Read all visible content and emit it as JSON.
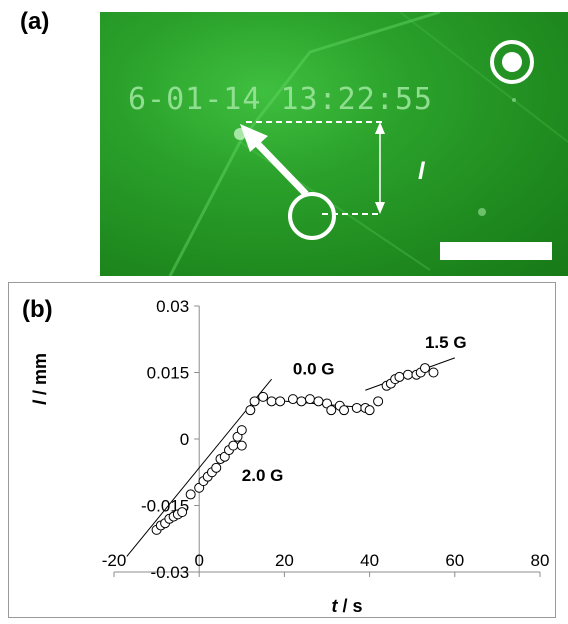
{
  "panel_a": {
    "label": "(a)",
    "timestamp": "6-01-14 13:22:55",
    "length_symbol": "l"
  },
  "panel_b": {
    "label": "(b)"
  },
  "chart_data": {
    "type": "scatter",
    "xlabel_symbol": "t",
    "xlabel_unit": " / s",
    "ylabel_symbol": "l",
    "ylabel_unit": " / mm",
    "xlim": [
      -20,
      80
    ],
    "ylim": [
      -0.03,
      0.03
    ],
    "x_ticks": [
      -20,
      0,
      20,
      40,
      60,
      80
    ],
    "y_ticks": [
      0.03,
      0.015,
      0,
      -0.015,
      -0.03
    ],
    "x_tick_labels": [
      "-20",
      "0",
      "20",
      "40",
      "60",
      "80"
    ],
    "y_tick_labels": [
      "0.03",
      "0.015",
      "0",
      "-0.015",
      "-0.03"
    ],
    "grid": false,
    "points": [
      {
        "x": -10,
        "y": -0.0205
      },
      {
        "x": -9,
        "y": -0.0195
      },
      {
        "x": -8,
        "y": -0.019
      },
      {
        "x": -7,
        "y": -0.018
      },
      {
        "x": -6,
        "y": -0.0175
      },
      {
        "x": -5,
        "y": -0.017
      },
      {
        "x": -4,
        "y": -0.0165
      },
      {
        "x": -2,
        "y": -0.0125
      },
      {
        "x": 0,
        "y": -0.011
      },
      {
        "x": 1,
        "y": -0.0095
      },
      {
        "x": 2,
        "y": -0.0085
      },
      {
        "x": 3,
        "y": -0.0075
      },
      {
        "x": 4,
        "y": -0.0065
      },
      {
        "x": 5,
        "y": -0.0045
      },
      {
        "x": 6,
        "y": -0.004
      },
      {
        "x": 7,
        "y": -0.0025
      },
      {
        "x": 8,
        "y": -0.0015
      },
      {
        "x": 9,
        "y": 0.0005
      },
      {
        "x": 10,
        "y": 0.002
      },
      {
        "x": 10,
        "y": -0.0015
      },
      {
        "x": 12,
        "y": 0.0065
      },
      {
        "x": 13,
        "y": 0.0085
      },
      {
        "x": 15,
        "y": 0.0095
      },
      {
        "x": 17,
        "y": 0.0085
      },
      {
        "x": 19,
        "y": 0.0085
      },
      {
        "x": 22,
        "y": 0.009
      },
      {
        "x": 24,
        "y": 0.0085
      },
      {
        "x": 26,
        "y": 0.009
      },
      {
        "x": 28,
        "y": 0.0085
      },
      {
        "x": 30,
        "y": 0.008
      },
      {
        "x": 31,
        "y": 0.0065
      },
      {
        "x": 33,
        "y": 0.0075
      },
      {
        "x": 34,
        "y": 0.0065
      },
      {
        "x": 37,
        "y": 0.007
      },
      {
        "x": 39,
        "y": 0.007
      },
      {
        "x": 40,
        "y": 0.0065
      },
      {
        "x": 42,
        "y": 0.0085
      },
      {
        "x": 44,
        "y": 0.012
      },
      {
        "x": 45,
        "y": 0.0125
      },
      {
        "x": 46,
        "y": 0.0135
      },
      {
        "x": 47,
        "y": 0.014
      },
      {
        "x": 49,
        "y": 0.0145
      },
      {
        "x": 51,
        "y": 0.0145
      },
      {
        "x": 52,
        "y": 0.015
      },
      {
        "x": 53,
        "y": 0.016
      },
      {
        "x": 55,
        "y": 0.015
      }
    ],
    "fit_lines": [
      {
        "label": "2.0 G",
        "x": [
          -17,
          17
        ],
        "y": [
          -0.0265,
          0.0135
        ]
      },
      {
        "label": "0.0 G",
        "x": [
          14,
          40
        ],
        "y": [
          0.009,
          0.007
        ]
      },
      {
        "label": "1.5 G",
        "x": [
          39,
          60
        ],
        "y": [
          0.011,
          0.0183
        ]
      }
    ],
    "annotations": [
      {
        "text": "2.0 G",
        "x": 10,
        "y": -0.0095
      },
      {
        "text": "0.0 G",
        "x": 22,
        "y": 0.0145
      },
      {
        "text": "1.5 G",
        "x": 53,
        "y": 0.0205
      }
    ]
  }
}
